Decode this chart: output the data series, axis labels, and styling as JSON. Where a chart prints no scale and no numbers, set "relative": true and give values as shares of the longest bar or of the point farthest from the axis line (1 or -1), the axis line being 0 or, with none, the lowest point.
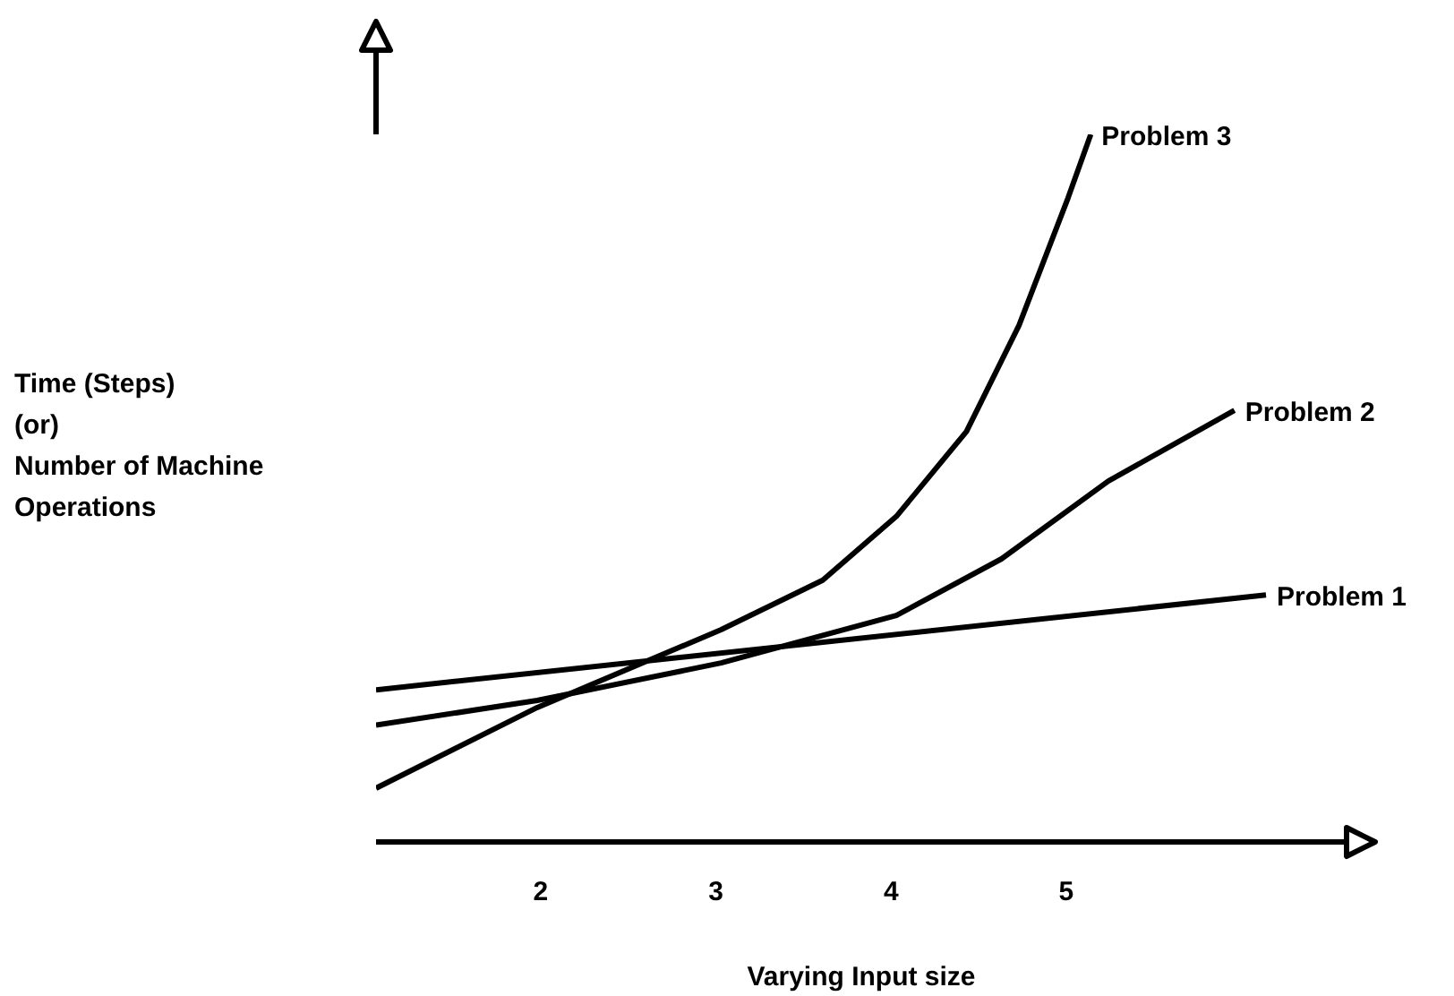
{
  "chart_data": {
    "type": "line",
    "relative": true,
    "xlabel": "Varying Input size",
    "ylabel": "Time (Steps)\n(or)\nNumber of Machine\nOperations",
    "xlim": [
      1.06,
      6.6
    ],
    "xticks": [
      2,
      3,
      4,
      5
    ],
    "grid": false,
    "legend": false,
    "marker": "none",
    "line_style": "solid",
    "series": [
      {
        "name": "Problem 1",
        "color": "#000000",
        "x": [
          1.06,
          6.14
        ],
        "values": [
          0.215,
          0.349
        ]
      },
      {
        "name": "Problem 2",
        "color": "#000000",
        "x": [
          1.06,
          1.98,
          3.03,
          4.03,
          4.63,
          5.24,
          5.96
        ],
        "values": [
          0.165,
          0.2,
          0.253,
          0.32,
          0.4,
          0.51,
          0.61
        ]
      },
      {
        "name": "Problem 3",
        "color": "#000000",
        "x": [
          1.06,
          1.98,
          3.03,
          3.61,
          4.03,
          4.43,
          4.73,
          5.01,
          5.14
        ],
        "values": [
          0.076,
          0.19,
          0.3,
          0.37,
          0.46,
          0.58,
          0.73,
          0.91,
          1.0
        ]
      }
    ]
  }
}
